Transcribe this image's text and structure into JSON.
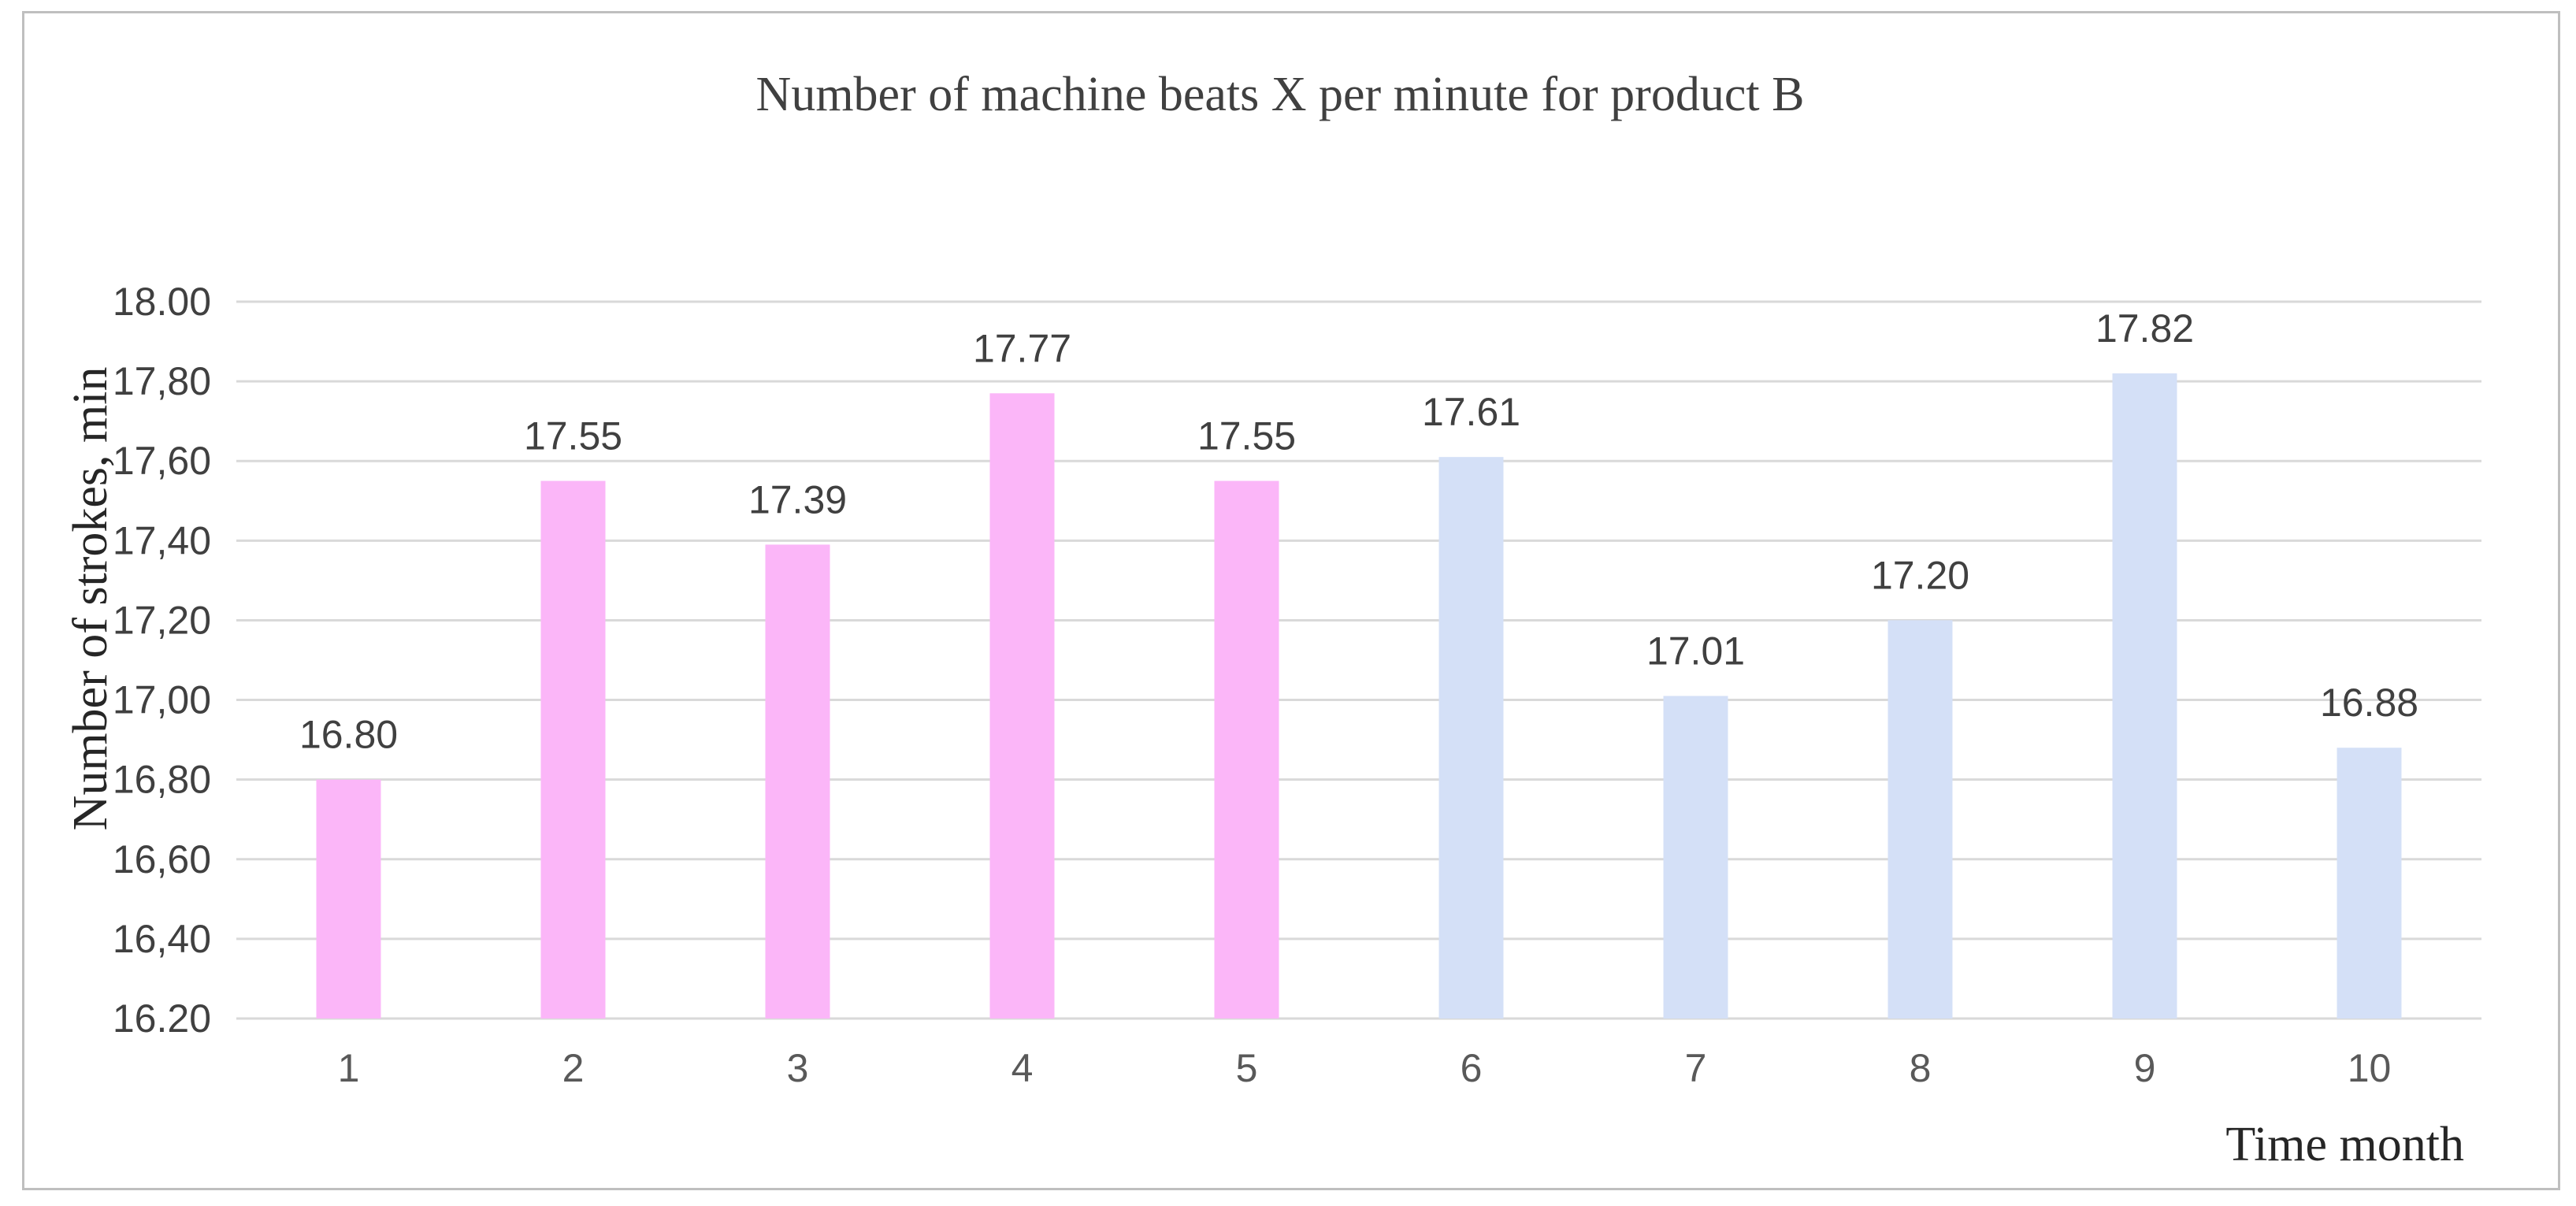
{
  "chart_data": {
    "type": "bar",
    "title": "Number of machine beats X per minute for product B",
    "xlabel": "Time month",
    "ylabel": "Number of strokes, min",
    "categories": [
      "1",
      "2",
      "3",
      "4",
      "5",
      "6",
      "7",
      "8",
      "9",
      "10"
    ],
    "values": [
      16.8,
      17.55,
      17.39,
      17.77,
      17.55,
      17.61,
      17.01,
      17.2,
      17.82,
      16.88
    ],
    "data_labels": [
      "16.80",
      "17.55",
      "17.39",
      "17.77",
      "17.55",
      "17.61",
      "17.01",
      "17.20",
      "17.82",
      "16.88"
    ],
    "ylim": [
      16.2,
      18.0
    ],
    "y_ticks": [
      16.2,
      16.4,
      16.6,
      16.8,
      17.0,
      17.2,
      17.4,
      17.6,
      17.8,
      18.0
    ],
    "y_tick_labels": [
      "16.20",
      "16,40",
      "16,60",
      "16,80",
      "17,00",
      "17,20",
      "17,40",
      "17,60",
      "17,80",
      "18.00"
    ],
    "bar_colors": [
      "#fbb6f8",
      "#fbb6f8",
      "#fbb6f8",
      "#fbb6f8",
      "#fbb6f8",
      "#d4e0f7",
      "#d4e0f7",
      "#d4e0f7",
      "#d4e0f7",
      "#d4e0f7"
    ],
    "grid": true,
    "legend": false
  }
}
